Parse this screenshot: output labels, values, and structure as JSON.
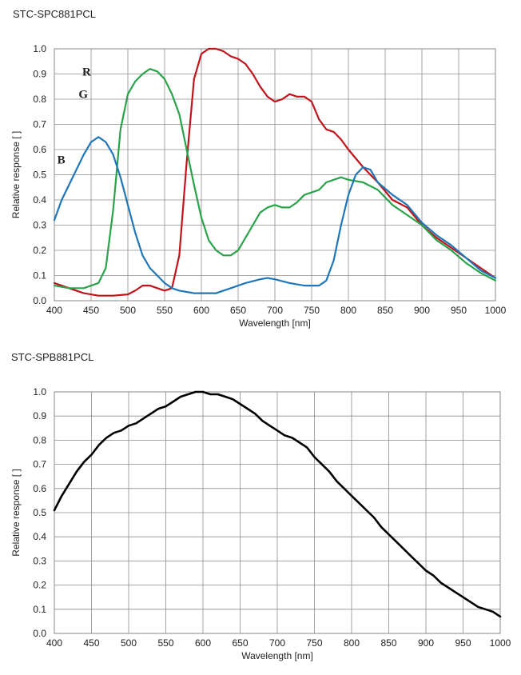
{
  "chart_data": [
    {
      "type": "line",
      "title": "STC-SPC881PCL",
      "xlabel": "Wavelength [nm]",
      "ylabel": "Relative response [ ]",
      "xlim": [
        400,
        1000
      ],
      "ylim": [
        0,
        1.0
      ],
      "grid": true,
      "xticks": [
        "400",
        "450",
        "500",
        "550",
        "600",
        "650",
        "700",
        "750",
        "800",
        "850",
        "900",
        "950",
        "1000"
      ],
      "yticks": [
        "0.0",
        "0.1",
        "0.2",
        "0.3",
        "0.4",
        "0.5",
        "0.6",
        "0.7",
        "0.8",
        "0.9",
        "1.0"
      ],
      "series": [
        {
          "name": "R",
          "color": "#c0141c",
          "label_at": [
            438,
            0.91
          ],
          "x": [
            400,
            420,
            440,
            460,
            480,
            500,
            510,
            520,
            530,
            540,
            550,
            560,
            570,
            580,
            590,
            600,
            610,
            620,
            630,
            640,
            650,
            660,
            670,
            680,
            690,
            700,
            710,
            720,
            730,
            740,
            750,
            760,
            770,
            780,
            790,
            800,
            820,
            840,
            860,
            880,
            900,
            920,
            940,
            960,
            980,
            1000
          ],
          "y": [
            0.07,
            0.05,
            0.03,
            0.02,
            0.02,
            0.025,
            0.04,
            0.06,
            0.06,
            0.05,
            0.04,
            0.05,
            0.18,
            0.55,
            0.88,
            0.98,
            1.0,
            1.0,
            0.99,
            0.97,
            0.96,
            0.94,
            0.9,
            0.85,
            0.81,
            0.79,
            0.8,
            0.82,
            0.81,
            0.81,
            0.79,
            0.72,
            0.68,
            0.67,
            0.64,
            0.6,
            0.53,
            0.47,
            0.4,
            0.37,
            0.3,
            0.25,
            0.21,
            0.17,
            0.13,
            0.09
          ]
        },
        {
          "name": "G",
          "color": "#2aa24a",
          "label_at": [
            433,
            0.82
          ],
          "x": [
            400,
            420,
            440,
            460,
            470,
            480,
            490,
            500,
            510,
            520,
            530,
            540,
            550,
            560,
            570,
            580,
            590,
            600,
            610,
            620,
            630,
            640,
            650,
            660,
            670,
            680,
            690,
            700,
            710,
            720,
            730,
            740,
            750,
            760,
            770,
            780,
            790,
            800,
            820,
            840,
            860,
            880,
            900,
            920,
            940,
            960,
            980,
            1000
          ],
          "y": [
            0.06,
            0.05,
            0.05,
            0.07,
            0.13,
            0.36,
            0.68,
            0.82,
            0.87,
            0.9,
            0.92,
            0.91,
            0.88,
            0.82,
            0.74,
            0.6,
            0.46,
            0.33,
            0.24,
            0.2,
            0.18,
            0.18,
            0.2,
            0.25,
            0.3,
            0.35,
            0.37,
            0.38,
            0.37,
            0.37,
            0.39,
            0.42,
            0.43,
            0.44,
            0.47,
            0.48,
            0.49,
            0.48,
            0.47,
            0.44,
            0.38,
            0.34,
            0.3,
            0.24,
            0.2,
            0.15,
            0.11,
            0.08
          ]
        },
        {
          "name": "B",
          "color": "#1f77b8",
          "label_at": [
            404,
            0.56
          ],
          "x": [
            400,
            410,
            420,
            430,
            440,
            450,
            460,
            470,
            480,
            490,
            500,
            510,
            520,
            530,
            540,
            550,
            560,
            570,
            580,
            590,
            600,
            620,
            640,
            660,
            680,
            690,
            700,
            720,
            740,
            760,
            770,
            780,
            790,
            800,
            810,
            820,
            830,
            840,
            860,
            880,
            900,
            920,
            940,
            960,
            980,
            1000
          ],
          "y": [
            0.32,
            0.4,
            0.46,
            0.52,
            0.58,
            0.63,
            0.65,
            0.63,
            0.58,
            0.49,
            0.38,
            0.27,
            0.18,
            0.13,
            0.1,
            0.07,
            0.05,
            0.04,
            0.035,
            0.03,
            0.03,
            0.03,
            0.05,
            0.07,
            0.085,
            0.09,
            0.085,
            0.07,
            0.06,
            0.06,
            0.08,
            0.16,
            0.3,
            0.42,
            0.5,
            0.53,
            0.52,
            0.47,
            0.42,
            0.38,
            0.31,
            0.26,
            0.22,
            0.17,
            0.12,
            0.09
          ]
        }
      ]
    },
    {
      "type": "line",
      "title": "STC-SPB881PCL",
      "xlabel": "Wavelength [nm]",
      "ylabel": "Relative response [ ]",
      "xlim": [
        400,
        1000
      ],
      "ylim": [
        0,
        1.0
      ],
      "grid": true,
      "xticks": [
        "400",
        "450",
        "500",
        "550",
        "600",
        "650",
        "700",
        "750",
        "800",
        "850",
        "900",
        "950",
        "1000"
      ],
      "yticks": [
        "0.0",
        "0.1",
        "0.2",
        "0.3",
        "0.4",
        "0.5",
        "0.6",
        "0.7",
        "0.8",
        "0.9",
        "1.0"
      ],
      "series": [
        {
          "color": "#000000",
          "x": [
            400,
            410,
            420,
            430,
            440,
            450,
            460,
            470,
            480,
            490,
            500,
            510,
            520,
            530,
            540,
            550,
            560,
            570,
            580,
            590,
            600,
            610,
            620,
            630,
            640,
            650,
            660,
            670,
            680,
            690,
            700,
            710,
            720,
            730,
            740,
            750,
            760,
            770,
            780,
            790,
            800,
            810,
            820,
            830,
            840,
            850,
            860,
            870,
            880,
            890,
            900,
            910,
            920,
            930,
            940,
            950,
            960,
            970,
            980,
            990,
            1000
          ],
          "y": [
            0.51,
            0.57,
            0.62,
            0.67,
            0.71,
            0.74,
            0.78,
            0.81,
            0.83,
            0.84,
            0.86,
            0.87,
            0.89,
            0.91,
            0.93,
            0.94,
            0.96,
            0.98,
            0.99,
            1.0,
            1.0,
            0.99,
            0.99,
            0.98,
            0.97,
            0.95,
            0.93,
            0.91,
            0.88,
            0.86,
            0.84,
            0.82,
            0.81,
            0.79,
            0.77,
            0.73,
            0.7,
            0.67,
            0.63,
            0.6,
            0.57,
            0.54,
            0.51,
            0.48,
            0.44,
            0.41,
            0.38,
            0.35,
            0.32,
            0.29,
            0.26,
            0.24,
            0.21,
            0.19,
            0.17,
            0.15,
            0.13,
            0.11,
            0.1,
            0.09,
            0.07
          ]
        }
      ]
    }
  ]
}
